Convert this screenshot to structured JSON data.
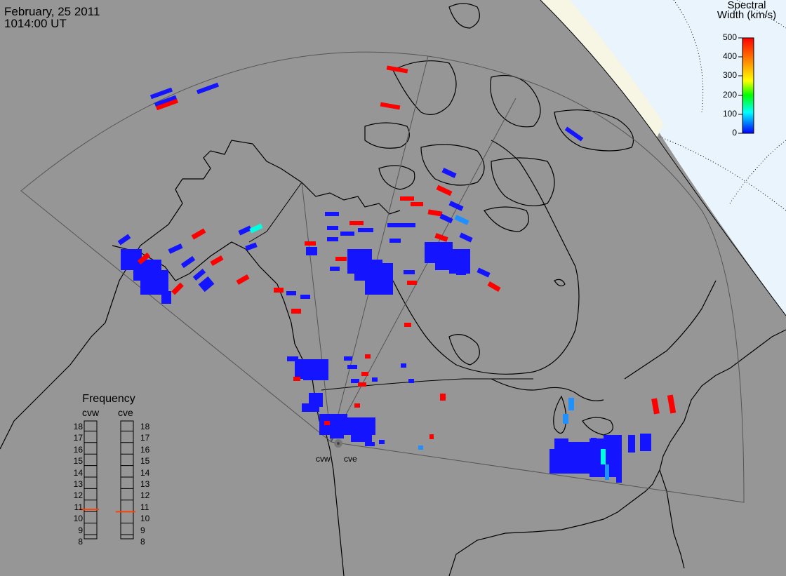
{
  "header": {
    "date": "February, 25 2011",
    "time": "1014:00 UT"
  },
  "colorbar": {
    "title_line1": "Spectral",
    "title_line2": "Width (km/s)",
    "ticks": [
      "500",
      "400",
      "300",
      "200",
      "100",
      "0"
    ],
    "gradient": [
      "#ff0000",
      "#ff8c00",
      "#ffff00",
      "#00ff00",
      "#00ffff",
      "#0000ff"
    ]
  },
  "frequency": {
    "title": "Frequency",
    "radars": [
      "cvw",
      "cve"
    ],
    "levels": [
      "18",
      "17",
      "16",
      "15",
      "14",
      "13",
      "12",
      "11",
      "10",
      "9",
      "8"
    ],
    "cvw_mhz": 10.8,
    "cve_mhz": 10.6,
    "marker_color": "#ff4000"
  },
  "radar_sites": [
    "cvw",
    "cve"
  ],
  "colors": {
    "land": "#969696",
    "sunlit": "#f7f5e3",
    "night": "#e9f4fc",
    "coast": "#000000",
    "fov": "#555555",
    "echo_low": "#1414ff",
    "echo_high": "#ff0000",
    "echo_mid": "#2090ff",
    "echo_cyan": "#00ffe0"
  }
}
